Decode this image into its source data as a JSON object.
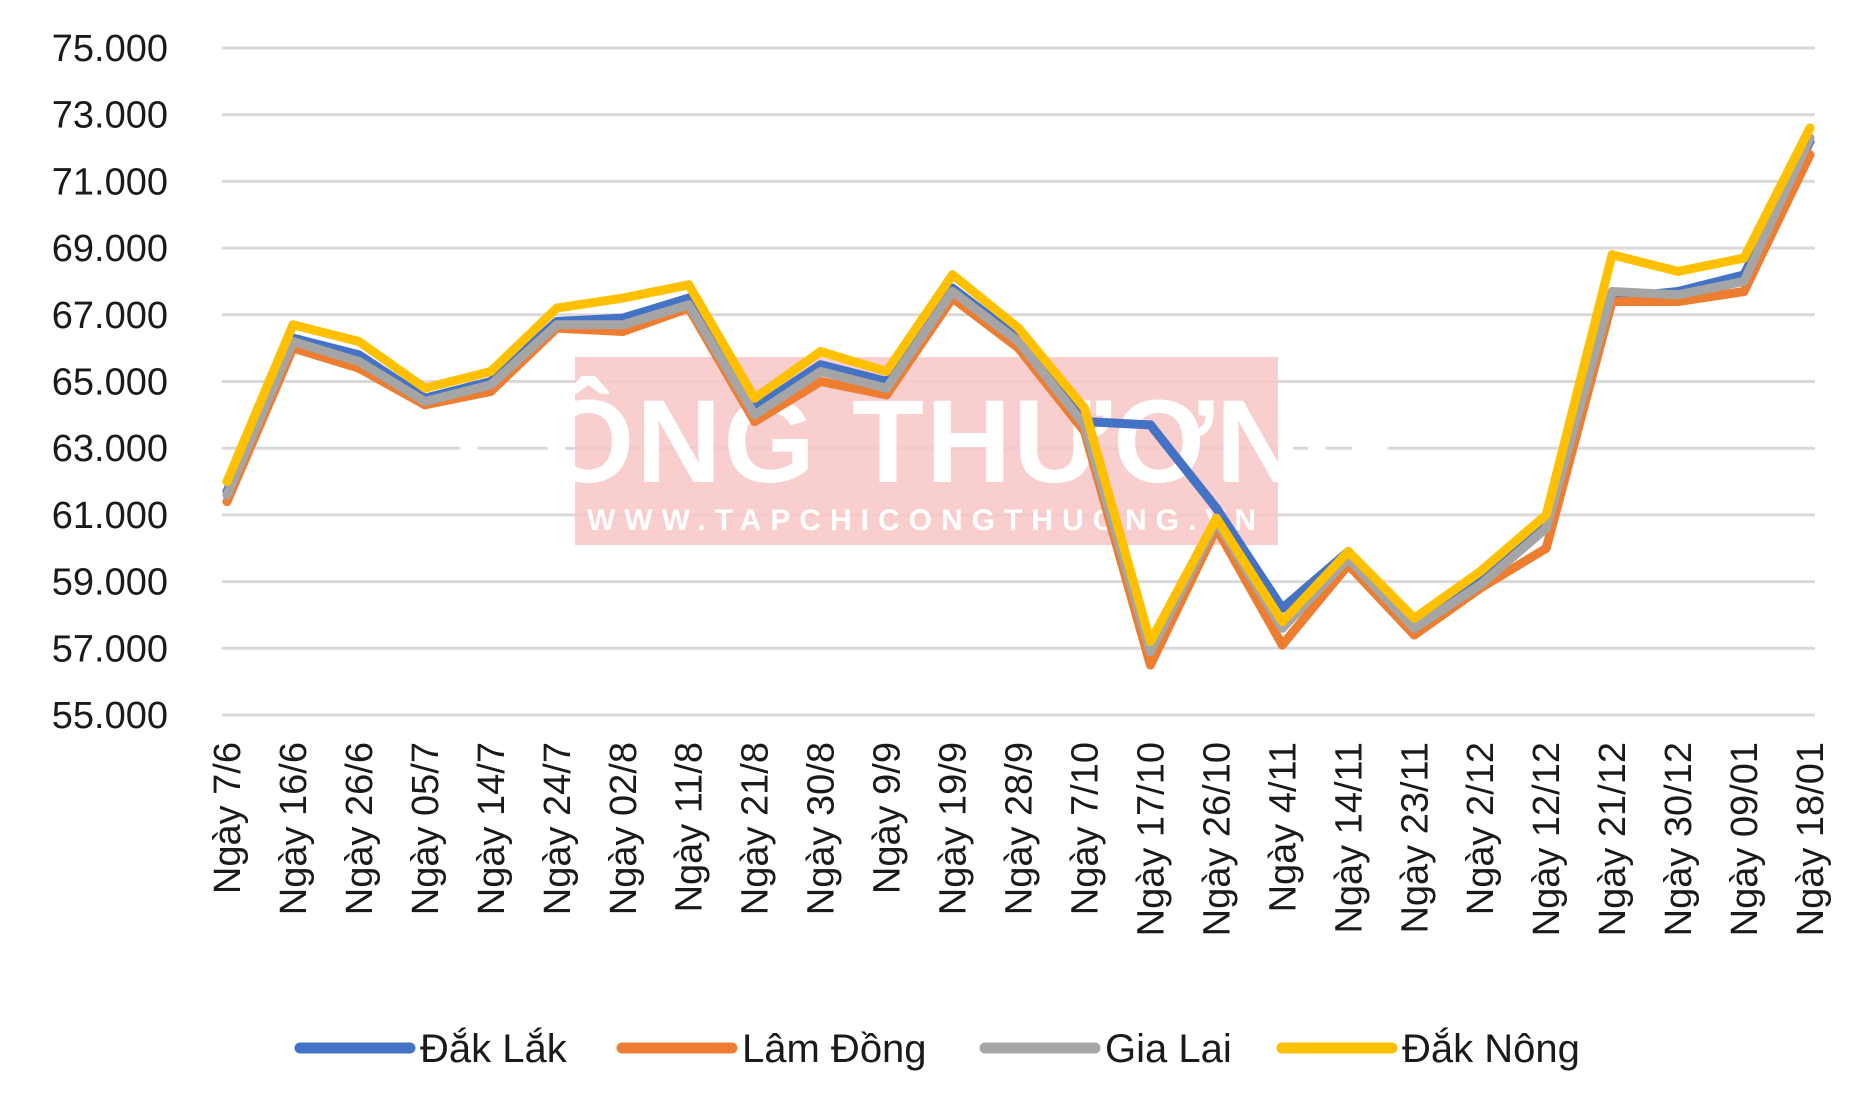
{
  "chart_data": {
    "type": "line",
    "title": "",
    "xlabel": "",
    "ylabel": "",
    "ylim": [
      55000,
      75000
    ],
    "y_ticks": [
      "55.000",
      "57.000",
      "59.000",
      "61.000",
      "63.000",
      "65.000",
      "67.000",
      "69.000",
      "71.000",
      "73.000",
      "75.000"
    ],
    "grid": true,
    "legend_position": "bottom",
    "watermark": {
      "title": "CÔNG THƯƠNG",
      "url": "WWW.TAPCHICONGTHUONG.VN"
    },
    "categories": [
      "Ngày 7/6",
      "Ngày 16/6",
      "Ngày 26/6",
      "Ngày 05/7",
      "Ngày 14/7",
      "Ngày 24/7",
      "Ngày 02/8",
      "Ngày 11/8",
      "Ngày 21/8",
      "Ngày 30/8",
      "Ngày 9/9",
      "Ngày 19/9",
      "Ngày 28/9",
      "Ngày 7/10",
      "Ngày 17/10",
      "Ngày 26/10",
      "Ngày 4/11",
      "Ngày 14/11",
      "Ngày 23/11",
      "Ngày 2/12",
      "Ngày 12/12",
      "Ngày 21/12",
      "Ngày 30/12",
      "Ngày 09/01",
      "Ngày 18/01"
    ],
    "series": [
      {
        "name": "Đắk Lắk",
        "color": "#4472C4",
        "values": [
          61700,
          66300,
          65800,
          64500,
          65000,
          66800,
          66900,
          67500,
          64200,
          65500,
          65000,
          67800,
          66300,
          63800,
          63700,
          61200,
          58200,
          59900,
          57800,
          59000,
          60700,
          67500,
          67700,
          68200,
          72200
        ]
      },
      {
        "name": "Lâm Đồng",
        "color": "#ED7D31",
        "values": [
          61400,
          66000,
          65400,
          64300,
          64700,
          66600,
          66500,
          67200,
          63800,
          65000,
          64600,
          67500,
          66000,
          63500,
          56500,
          60600,
          57100,
          59500,
          57400,
          58800,
          60000,
          67400,
          67400,
          67700,
          71800
        ]
      },
      {
        "name": "Gia Lai",
        "color": "#A5A5A5",
        "values": [
          61600,
          66200,
          65600,
          64400,
          64900,
          66700,
          66700,
          67300,
          64000,
          65300,
          64800,
          67700,
          66200,
          63700,
          56900,
          60800,
          57600,
          59700,
          57600,
          58900,
          60600,
          67700,
          67600,
          68000,
          72300
        ]
      },
      {
        "name": "Đắk Nông",
        "color": "#FFC000",
        "values": [
          62000,
          66700,
          66200,
          64800,
          65300,
          67200,
          67500,
          67900,
          64500,
          65900,
          65300,
          68200,
          66600,
          64200,
          57200,
          60900,
          57800,
          59900,
          57900,
          59300,
          61000,
          68800,
          68300,
          68700,
          72600
        ]
      }
    ]
  }
}
